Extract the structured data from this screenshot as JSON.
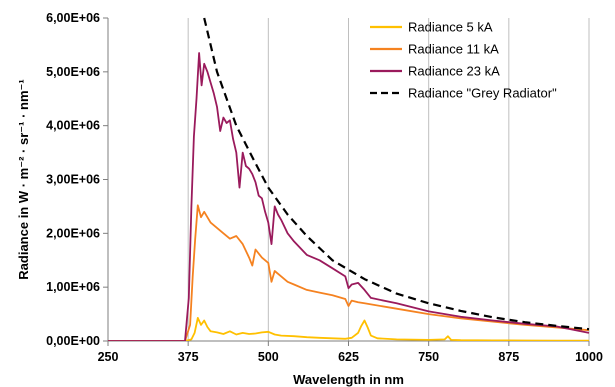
{
  "chart_data": {
    "type": "line",
    "title": "",
    "xlabel": "Wavelength in nm",
    "ylabel": "Radiance in W · m⁻² · sr⁻¹ · nm⁻¹",
    "xlim": [
      250,
      1000
    ],
    "ylim": [
      0,
      6000000
    ],
    "x_ticks": [
      "250",
      "375",
      "500",
      "625",
      "750",
      "875",
      "1000"
    ],
    "x_tick_values": [
      250,
      375,
      500,
      625,
      750,
      875,
      1000
    ],
    "y_ticks": [
      "0,00E+00",
      "1,00E+06",
      "2,00E+06",
      "3,00E+06",
      "4,00E+06",
      "5,00E+06",
      "6,00E+06"
    ],
    "y_tick_values": [
      0,
      1000000,
      2000000,
      3000000,
      4000000,
      5000000,
      6000000
    ],
    "grid": "vertical",
    "legend_position": "top-right",
    "series": [
      {
        "name": "Radiance 5 kA",
        "color": "#FFC000",
        "dash": "solid",
        "x": [
          250,
          370,
          380,
          385,
          390,
          395,
          400,
          405,
          410,
          420,
          430,
          440,
          450,
          460,
          470,
          480,
          490,
          500,
          510,
          520,
          540,
          560,
          580,
          600,
          620,
          630,
          640,
          645,
          650,
          655,
          660,
          670,
          700,
          750,
          775,
          780,
          785,
          800,
          850,
          900,
          950,
          1000
        ],
        "y": [
          0,
          0,
          30000,
          150000,
          430000,
          300000,
          380000,
          260000,
          180000,
          160000,
          130000,
          180000,
          120000,
          150000,
          130000,
          140000,
          160000,
          170000,
          120000,
          100000,
          90000,
          70000,
          60000,
          50000,
          40000,
          60000,
          150000,
          280000,
          380000,
          250000,
          100000,
          50000,
          30000,
          20000,
          30000,
          90000,
          20000,
          15000,
          12000,
          10000,
          8000,
          5000
        ]
      },
      {
        "name": "Radiance 11 kA",
        "color": "#F58220",
        "dash": "solid",
        "x": [
          250,
          370,
          378,
          382,
          386,
          390,
          395,
          400,
          410,
          420,
          430,
          440,
          450,
          460,
          470,
          475,
          480,
          490,
          500,
          505,
          510,
          520,
          530,
          540,
          560,
          580,
          600,
          620,
          625,
          630,
          640,
          650,
          700,
          750,
          800,
          850,
          900,
          950,
          1000
        ],
        "y": [
          0,
          0,
          300000,
          1200000,
          1900000,
          2520000,
          2300000,
          2400000,
          2200000,
          2100000,
          2000000,
          1900000,
          1950000,
          1800000,
          1550000,
          1400000,
          1700000,
          1550000,
          1450000,
          1100000,
          1300000,
          1200000,
          1100000,
          1050000,
          950000,
          900000,
          850000,
          780000,
          650000,
          750000,
          720000,
          700000,
          600000,
          500000,
          420000,
          360000,
          300000,
          250000,
          200000
        ]
      },
      {
        "name": "Radiance 23 kA",
        "color": "#9A1A5C",
        "dash": "solid",
        "x": [
          250,
          370,
          376,
          380,
          384,
          388,
          392,
          396,
          400,
          405,
          410,
          415,
          420,
          425,
          430,
          435,
          440,
          445,
          450,
          455,
          460,
          465,
          470,
          475,
          480,
          485,
          490,
          495,
          500,
          505,
          510,
          515,
          520,
          530,
          540,
          560,
          580,
          600,
          620,
          625,
          630,
          640,
          650,
          660,
          700,
          750,
          800,
          850,
          900,
          950,
          1000
        ],
        "y": [
          0,
          0,
          800000,
          2500000,
          3800000,
          4500000,
          5350000,
          4750000,
          5150000,
          5000000,
          4800000,
          4600000,
          4350000,
          3900000,
          4150000,
          4050000,
          4100000,
          3750000,
          3500000,
          2850000,
          3500000,
          3250000,
          3200000,
          3100000,
          2950000,
          2700000,
          2650000,
          2400000,
          2200000,
          1800000,
          2500000,
          2350000,
          2250000,
          2000000,
          1850000,
          1600000,
          1500000,
          1350000,
          1200000,
          980000,
          1050000,
          1080000,
          950000,
          800000,
          700000,
          550000,
          450000,
          380000,
          320000,
          270000,
          150000
        ]
      },
      {
        "name": "Radiance \"Grey Radiator\"",
        "color": "#000000",
        "dash": "dashed",
        "x": [
          400,
          420,
          450,
          480,
          500,
          530,
          560,
          600,
          650,
          700,
          750,
          800,
          850,
          900,
          950,
          1000
        ],
        "y": [
          6000000,
          5000000,
          4000000,
          3300000,
          2850000,
          2350000,
          1950000,
          1500000,
          1150000,
          880000,
          700000,
          560000,
          440000,
          350000,
          280000,
          220000
        ]
      }
    ]
  }
}
